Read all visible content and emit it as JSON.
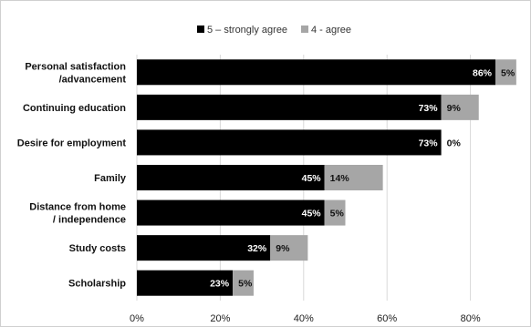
{
  "chart_data": {
    "type": "bar",
    "orientation": "horizontal",
    "stacked": true,
    "categories": [
      [
        "Personal satisfaction",
        "/advancement"
      ],
      [
        "Continuing education"
      ],
      [
        "Desire for employment"
      ],
      [
        "Family"
      ],
      [
        "Distance from home",
        "/ independence"
      ],
      [
        "Study costs"
      ],
      [
        "Scholarship"
      ]
    ],
    "series": [
      {
        "name": "5 – strongly agree",
        "color": "#000000",
        "values": [
          86,
          73,
          73,
          45,
          45,
          32,
          23
        ],
        "labels": [
          "86%",
          "73%",
          "73%",
          "45%",
          "45%",
          "32%",
          "23%"
        ]
      },
      {
        "name": "4 - agree",
        "color": "#a6a6a6",
        "values": [
          5,
          9,
          0,
          14,
          5,
          9,
          5
        ],
        "labels": [
          "5%",
          "9%",
          "0%",
          "14%",
          "5%",
          "9%",
          "5%"
        ]
      }
    ],
    "xlim": [
      0,
      90
    ],
    "x_ticks": [
      0,
      20,
      40,
      60,
      80
    ],
    "x_tick_labels": [
      "0%",
      "20%",
      "40%",
      "60%",
      "80%"
    ],
    "grid": "vertical",
    "legend": "top",
    "title": "",
    "xlabel": "",
    "ylabel": ""
  }
}
